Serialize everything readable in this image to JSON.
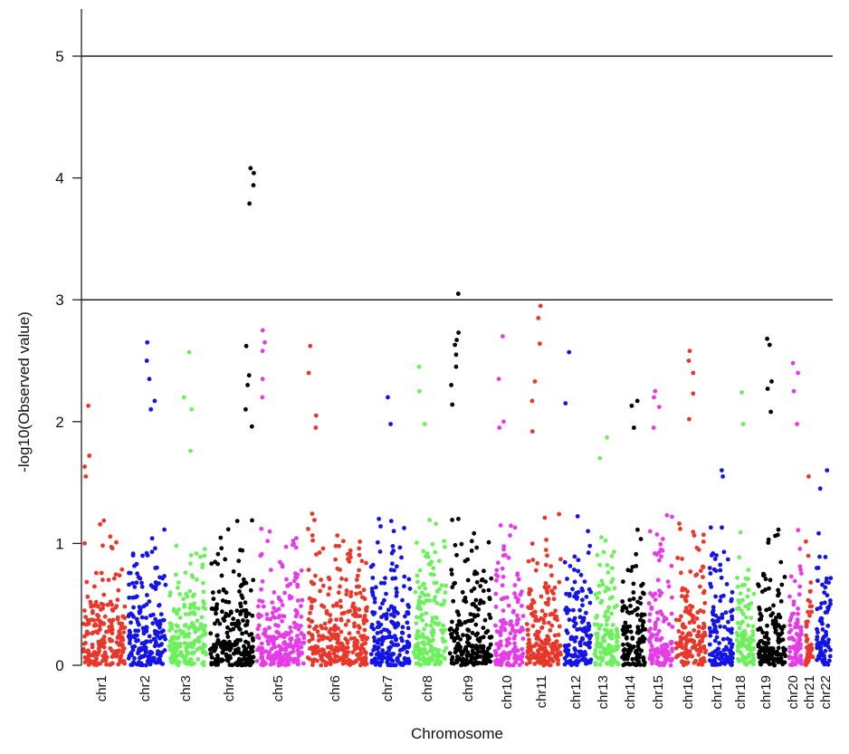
{
  "chart_data": {
    "type": "scatter",
    "subtype": "manhattan",
    "title": "",
    "xlabel": "Chromosome",
    "ylabel": "-log10(Observed value)",
    "ylim": [
      0,
      5.4
    ],
    "yticks": [
      0,
      1,
      2,
      3,
      4,
      5
    ],
    "grid": false,
    "legend": "none",
    "threshold_lines": [
      5,
      3
    ],
    "color_cycle": [
      "#e8372b",
      "#1414e6",
      "#6cf05c",
      "#000000",
      "#e63ce8"
    ],
    "chromosomes": [
      {
        "label": "chr1",
        "top_hits": [
          2.13,
          1.72,
          1.63,
          1.55
        ]
      },
      {
        "label": "chr2",
        "top_hits": [
          2.65,
          2.5,
          2.35,
          2.17,
          2.1
        ]
      },
      {
        "label": "chr3",
        "top_hits": [
          2.57,
          2.2,
          2.1,
          1.76
        ]
      },
      {
        "label": "chr4",
        "top_hits": [
          4.08,
          4.04,
          3.94,
          3.79,
          2.62,
          2.38,
          2.3,
          2.1,
          1.96
        ]
      },
      {
        "label": "chr5",
        "top_hits": [
          2.75,
          2.65,
          2.58,
          2.35,
          2.2
        ]
      },
      {
        "label": "chr6",
        "top_hits": [
          2.62,
          2.4,
          2.05,
          1.95
        ]
      },
      {
        "label": "chr7",
        "top_hits": [
          2.2,
          1.98
        ]
      },
      {
        "label": "chr8",
        "top_hits": [
          2.45,
          2.25,
          1.98
        ]
      },
      {
        "label": "chr9",
        "top_hits": [
          3.05,
          2.73,
          2.67,
          2.63,
          2.55,
          2.45,
          2.3,
          2.14
        ]
      },
      {
        "label": "chr10",
        "top_hits": [
          2.7,
          2.35,
          2.0,
          1.95
        ]
      },
      {
        "label": "chr11",
        "top_hits": [
          2.95,
          2.85,
          2.64,
          2.33,
          2.17,
          1.92
        ]
      },
      {
        "label": "chr12",
        "top_hits": [
          2.57,
          2.15
        ]
      },
      {
        "label": "chr13",
        "top_hits": [
          1.87,
          1.7
        ]
      },
      {
        "label": "chr14",
        "top_hits": [
          2.17,
          2.13,
          1.95
        ]
      },
      {
        "label": "chr15",
        "top_hits": [
          2.25,
          2.2,
          2.12,
          1.95
        ]
      },
      {
        "label": "chr16",
        "top_hits": [
          2.58,
          2.5,
          2.4,
          2.23,
          2.02
        ]
      },
      {
        "label": "chr17",
        "top_hits": [
          1.6,
          1.55
        ]
      },
      {
        "label": "chr18",
        "top_hits": [
          2.24,
          1.98
        ]
      },
      {
        "label": "chr19",
        "top_hits": [
          2.68,
          2.63,
          2.33,
          2.27,
          2.08
        ]
      },
      {
        "label": "chr20",
        "top_hits": [
          2.48,
          2.4,
          2.25,
          1.98
        ]
      },
      {
        "label": "chr21",
        "top_hits": [
          1.55
        ]
      },
      {
        "label": "chr22",
        "top_hits": [
          1.6,
          1.45
        ]
      }
    ]
  }
}
